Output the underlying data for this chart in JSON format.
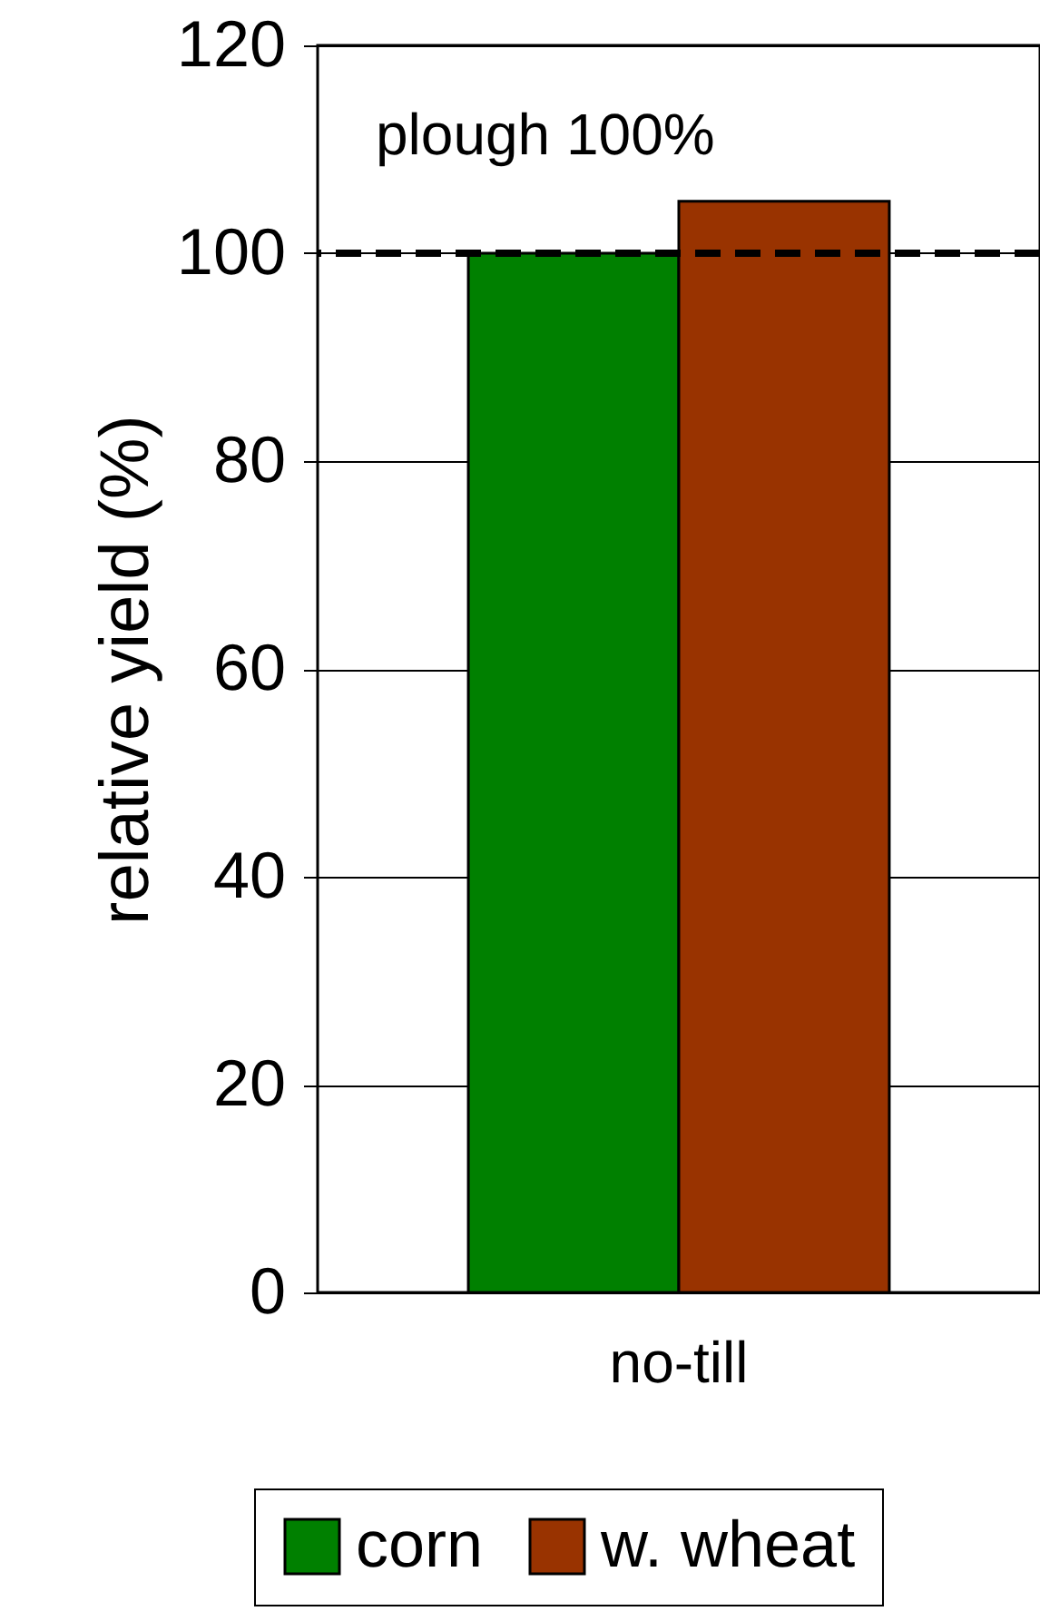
{
  "chart_data": {
    "type": "bar",
    "ylabel": "relative yield (%)",
    "categories": [
      "no-till"
    ],
    "series": [
      {
        "name": "corn",
        "color": "#008000",
        "values": [
          100
        ]
      },
      {
        "name": "w. wheat",
        "color": "#993300",
        "values": [
          105
        ]
      }
    ],
    "ylim": [
      0,
      120
    ],
    "yticks": [
      0,
      20,
      40,
      60,
      80,
      100,
      120
    ],
    "grid": "y",
    "legend": "bottom",
    "ref_lines": [
      {
        "axis": "y",
        "value": 100,
        "label": "plough 100%",
        "color": "#000000",
        "line_style": "dashed"
      }
    ]
  }
}
